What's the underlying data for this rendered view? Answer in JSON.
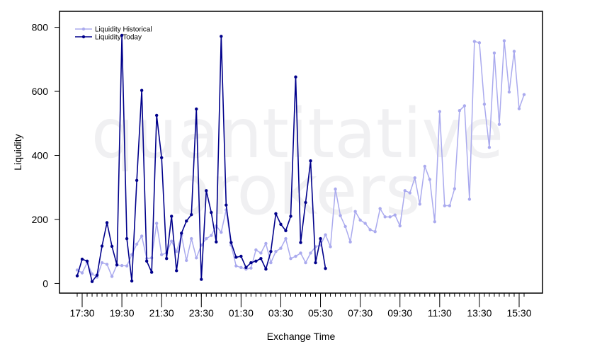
{
  "watermark": {
    "line1": "quantitative",
    "line2": "brokers"
  },
  "chart_data": {
    "type": "line",
    "xlabel": "Exchange Time",
    "ylabel": "Liquidity",
    "ylim": [
      -30,
      850
    ],
    "yticks": [
      0,
      200,
      400,
      600,
      800
    ],
    "x_tick_labels": [
      "17:30",
      "19:30",
      "21:30",
      "23:30",
      "01:30",
      "03:30",
      "05:30",
      "07:30",
      "09:30",
      "11:30",
      "13:30",
      "15:30"
    ],
    "x_tick_index": [
      1,
      9,
      17,
      25,
      33,
      41,
      49,
      57,
      65,
      73,
      81,
      89
    ],
    "x_minor_tick_index": [
      0,
      1,
      2,
      3,
      4,
      5,
      6,
      7,
      8,
      9,
      10,
      11,
      12,
      13,
      14,
      15,
      16,
      17,
      18,
      19,
      20,
      21,
      22,
      23,
      24,
      25,
      26,
      27,
      28,
      29,
      30,
      31,
      32,
      33,
      34,
      35,
      36,
      37,
      38,
      39,
      40,
      41,
      42,
      43,
      44,
      45,
      46,
      47,
      48,
      49,
      50,
      51,
      52,
      53,
      54,
      55,
      56,
      57,
      58,
      59,
      60,
      61,
      62,
      63,
      64,
      65,
      66,
      67,
      68,
      69,
      70,
      71,
      72,
      73,
      74,
      75,
      76,
      77,
      78,
      79,
      80,
      81,
      82,
      83,
      84,
      85,
      86,
      87,
      88,
      89,
      90
    ],
    "x_count": 91,
    "grid": false,
    "legend_position": "top-left",
    "series": [
      {
        "name": "Liquidity Historical",
        "color": "#aaaaee",
        "values": [
          42,
          33,
          65,
          30,
          20,
          65,
          60,
          22,
          58,
          56,
          55,
          90,
          123,
          148,
          78,
          80,
          188,
          90,
          95,
          132,
          100,
          150,
          72,
          140,
          80,
          120,
          140,
          150,
          180,
          160,
          230,
          120,
          55,
          50,
          45,
          48,
          105,
          95,
          125,
          65,
          100,
          110,
          140,
          78,
          85,
          95,
          65,
          95,
          115,
          120,
          152,
          115,
          295,
          212,
          178,
          130,
          225,
          198,
          188,
          168,
          162,
          234,
          208,
          208,
          214,
          180,
          290,
          283,
          330,
          248,
          366,
          325,
          193,
          537,
          243,
          243,
          296,
          540,
          555,
          263,
          756,
          752,
          560,
          425,
          720,
          497,
          758,
          598,
          725,
          546,
          590
        ]
      },
      {
        "name": "Liquidity Today",
        "color": "#00008b",
        "values": [
          24,
          76,
          70,
          6,
          26,
          117,
          190,
          116,
          58,
          775,
          140,
          8,
          322,
          603,
          70,
          35,
          525,
          393,
          78,
          210,
          40,
          157,
          195,
          215,
          545,
          13,
          290,
          222,
          130,
          772,
          245,
          128,
          82,
          85,
          50,
          65,
          70,
          78,
          45,
          100,
          218,
          185,
          165,
          210,
          645,
          128,
          253,
          383,
          65,
          140,
          47
        ]
      }
    ]
  }
}
